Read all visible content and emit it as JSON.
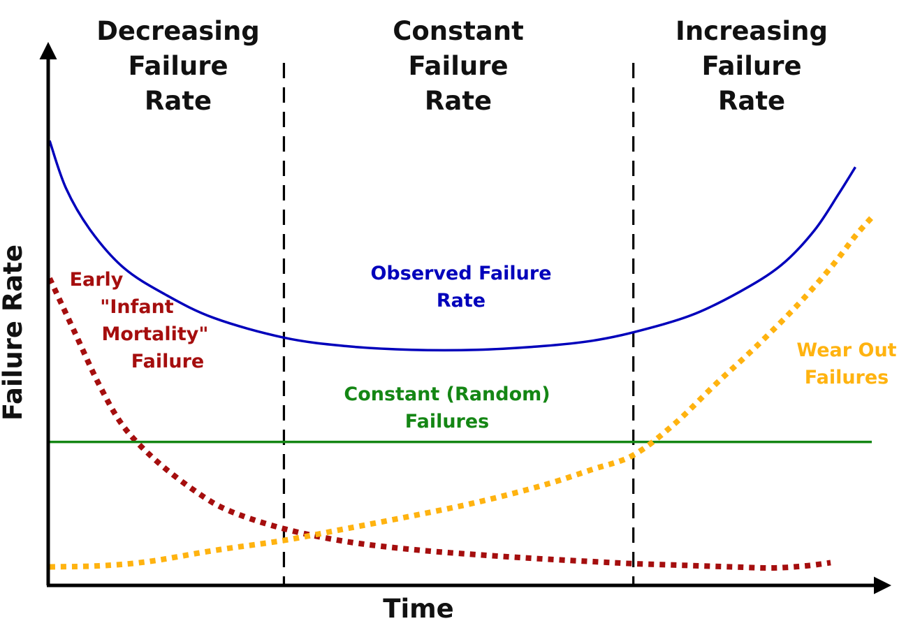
{
  "chart_data": {
    "type": "line",
    "xlabel": "Time",
    "ylabel": "Failure Rate",
    "xlim": [
      0,
      1
    ],
    "ylim": [
      0,
      1
    ],
    "grid": false,
    "legend": "none",
    "regions": [
      {
        "lines": [
          "Decreasing",
          "Failure",
          "Rate"
        ],
        "x_range": [
          0,
          0.285
        ]
      },
      {
        "lines": [
          "Constant",
          "Failure",
          "Rate"
        ],
        "x_range": [
          0.285,
          0.71
        ]
      },
      {
        "lines": [
          "Increasing",
          "Failure",
          "Rate"
        ],
        "x_range": [
          0.71,
          1
        ]
      }
    ],
    "boundaries": [
      0.285,
      0.71
    ],
    "series": [
      {
        "label": [
          "Observed Failure",
          "Rate"
        ],
        "style": "solid",
        "color": "#0000bb",
        "x": [
          0.0,
          0.02,
          0.05,
          0.09,
          0.14,
          0.2,
          0.285,
          0.36,
          0.44,
          0.52,
          0.6,
          0.66,
          0.71,
          0.78,
          0.84,
          0.89,
          0.93,
          0.96,
          0.98
        ],
        "y": [
          0.84,
          0.75,
          0.67,
          0.6,
          0.55,
          0.505,
          0.468,
          0.452,
          0.445,
          0.445,
          0.452,
          0.462,
          0.478,
          0.51,
          0.555,
          0.605,
          0.67,
          0.74,
          0.79
        ]
      },
      {
        "label": [
          "Early",
          "\"Infant",
          "Mortality\"",
          "Failure"
        ],
        "style": "dotted",
        "color": "#a50e0e",
        "x": [
          0.0,
          0.03,
          0.06,
          0.09,
          0.13,
          0.18,
          0.22,
          0.285,
          0.36,
          0.44,
          0.52,
          0.6,
          0.66,
          0.71,
          0.77,
          0.83,
          0.88,
          0.92,
          0.95
        ],
        "y": [
          0.58,
          0.48,
          0.38,
          0.3,
          0.235,
          0.175,
          0.14,
          0.107,
          0.083,
          0.068,
          0.058,
          0.05,
          0.045,
          0.041,
          0.038,
          0.035,
          0.033,
          0.037,
          0.043
        ]
      },
      {
        "label": [
          "Constant (Random)",
          "Failures"
        ],
        "style": "solid",
        "color": "#148614",
        "x": [
          0.0,
          1.0
        ],
        "y": [
          0.271,
          0.271
        ]
      },
      {
        "label": [
          "Wear Out",
          "Failures"
        ],
        "style": "dotted",
        "color": "#ffb310",
        "x": [
          0.0,
          0.06,
          0.12,
          0.2,
          0.285,
          0.36,
          0.44,
          0.52,
          0.6,
          0.66,
          0.71,
          0.76,
          0.81,
          0.86,
          0.91,
          0.95,
          0.98,
          1.0
        ],
        "y": [
          0.035,
          0.037,
          0.045,
          0.066,
          0.085,
          0.107,
          0.131,
          0.157,
          0.189,
          0.219,
          0.246,
          0.305,
          0.38,
          0.452,
          0.53,
          0.6,
          0.66,
          0.695
        ]
      }
    ]
  }
}
